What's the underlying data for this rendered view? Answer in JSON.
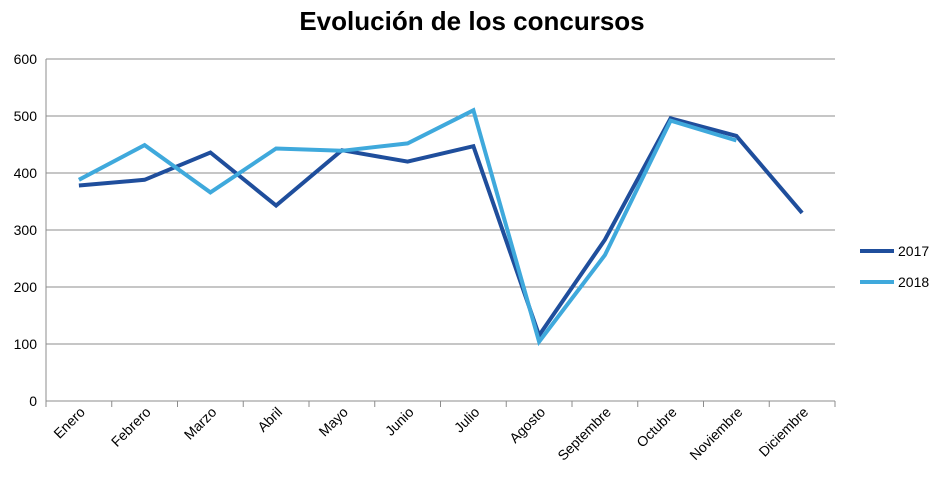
{
  "chart_data": {
    "type": "line",
    "title": "Evolución de los concursos",
    "xlabel": "",
    "ylabel": "",
    "categories": [
      "Enero",
      "Febrero",
      "Marzo",
      "Abril",
      "Mayo",
      "Junio",
      "Julio",
      "Agosto",
      "Septembre",
      "Octubre",
      "Noviembre",
      "Diciembre"
    ],
    "ylim": [
      0,
      600
    ],
    "yticks": [
      "0",
      "100",
      "200",
      "300",
      "400",
      "500",
      "600"
    ],
    "grid": true,
    "legend_position": "right",
    "series": [
      {
        "name": "2017",
        "color": "#1f4e9c",
        "values": [
          378,
          388,
          436,
          343,
          440,
          420,
          447,
          115,
          283,
          496,
          465,
          330
        ]
      },
      {
        "name": "2018",
        "color": "#3fa9dc",
        "values": [
          388,
          449,
          366,
          443,
          439,
          452,
          510,
          104,
          256,
          492,
          457,
          null
        ]
      }
    ]
  }
}
